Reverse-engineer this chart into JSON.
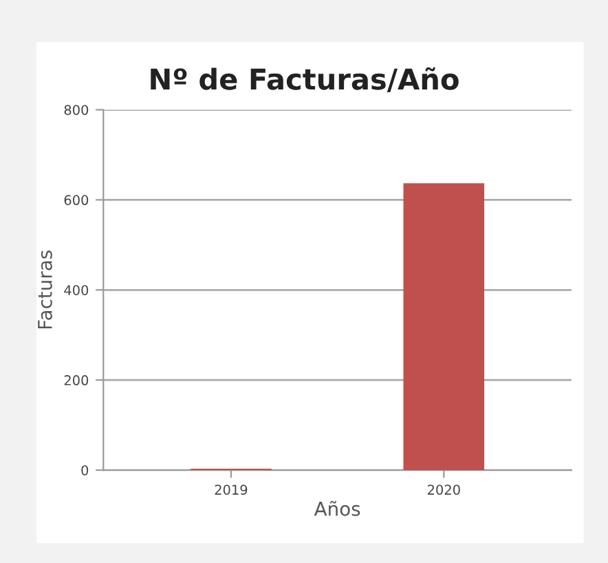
{
  "chart_data": {
    "type": "bar",
    "title": "Nº de Facturas/Año",
    "xlabel": "Años",
    "ylabel": "Facturas",
    "categories": [
      "2019",
      "2020"
    ],
    "values": [
      3,
      637
    ],
    "colors": [
      "#c0504e",
      "#c0504e"
    ],
    "ylim": [
      0,
      800
    ],
    "yticks": [
      0,
      200,
      400,
      600,
      800
    ],
    "grid": "y",
    "legend": false
  }
}
